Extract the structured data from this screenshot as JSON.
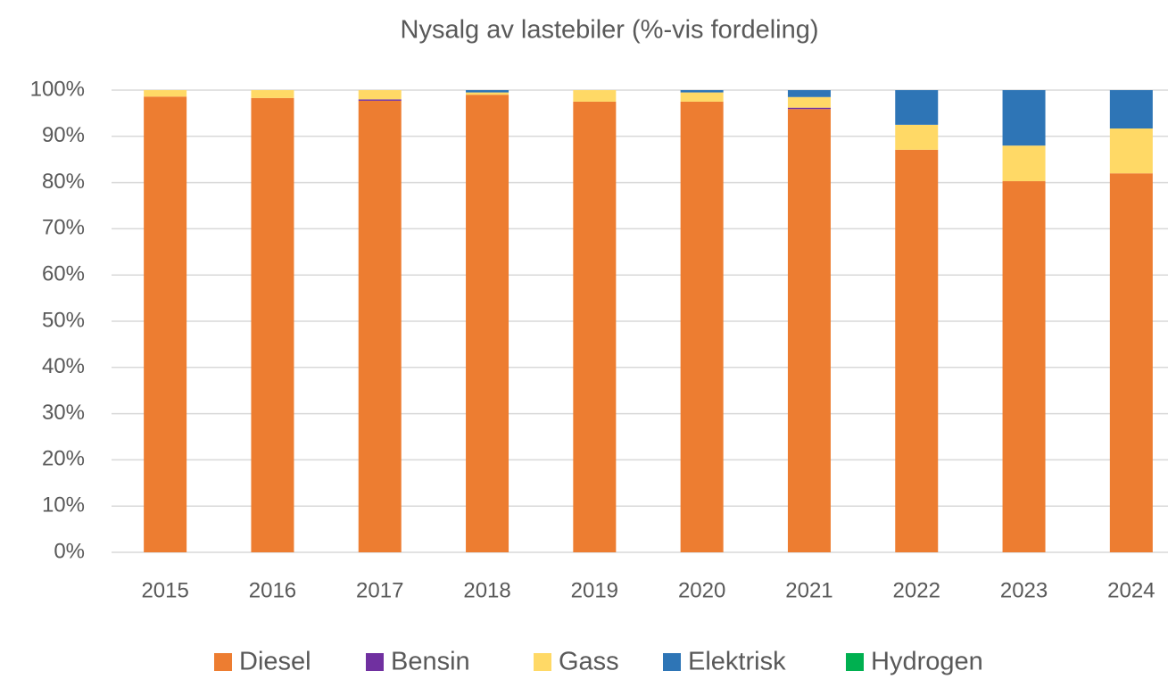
{
  "chart_data": {
    "type": "stacked_bar",
    "title": "Nysalg av lastebiler  (%-vis fordeling)",
    "categories": [
      "2015",
      "2016",
      "2017",
      "2018",
      "2019",
      "2020",
      "2021",
      "2022",
      "2023",
      "2024"
    ],
    "series": [
      {
        "name": "Diesel",
        "color": "#ED7D31",
        "values": [
          98.6,
          98.3,
          97.7,
          99.0,
          97.5,
          97.5,
          95.9,
          87.1,
          80.3,
          82.0
        ]
      },
      {
        "name": "Bensin",
        "color": "#7030A0",
        "values": [
          0,
          0,
          0.3,
          0,
          0,
          0,
          0.3,
          0,
          0,
          0
        ]
      },
      {
        "name": "Gass",
        "color": "#FFD966",
        "values": [
          1.4,
          1.7,
          2.0,
          0.5,
          2.5,
          2.0,
          2.3,
          5.4,
          7.7,
          9.7
        ]
      },
      {
        "name": "Elektrisk",
        "color": "#2E75B6",
        "values": [
          0,
          0,
          0,
          0.5,
          0,
          0.5,
          1.5,
          7.5,
          12.0,
          8.3
        ]
      },
      {
        "name": "Hydrogen",
        "color": "#00B050",
        "values": [
          0,
          0,
          0,
          0,
          0,
          0,
          0,
          0,
          0,
          0
        ]
      }
    ],
    "ylim": [
      0,
      100
    ],
    "yticks": [
      {
        "value": 0,
        "label": "0%"
      },
      {
        "value": 10,
        "label": "10%"
      },
      {
        "value": 20,
        "label": "20%"
      },
      {
        "value": 30,
        "label": "30%"
      },
      {
        "value": 40,
        "label": "40%"
      },
      {
        "value": 50,
        "label": "50%"
      },
      {
        "value": 60,
        "label": "60%"
      },
      {
        "value": 70,
        "label": "70%"
      },
      {
        "value": 80,
        "label": "80%"
      },
      {
        "value": 90,
        "label": "90%"
      },
      {
        "value": 100,
        "label": "100%"
      }
    ],
    "grid": true,
    "legend": "bottom"
  }
}
